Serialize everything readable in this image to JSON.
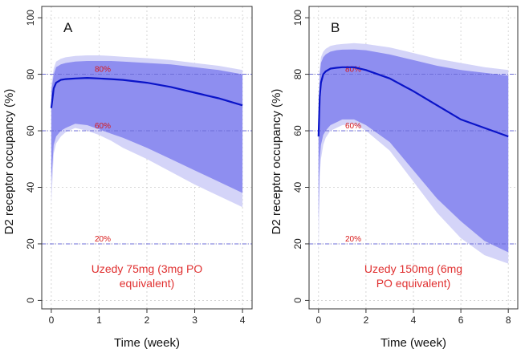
{
  "colors": {
    "median_line": "#0a14c8",
    "inner_band": "#8e8ef0",
    "outer_band": "#d4d4f8",
    "reference_line": "#6e6ed8",
    "reference_label": "#d81818",
    "caption": "#e03030",
    "grid": "#cccccc",
    "axis": "#333333"
  },
  "chart_data": [
    {
      "type": "line",
      "panel_label": "A",
      "xlabel": "Time (week)",
      "ylabel": "D2 receptor occupancy (%)",
      "xlim": [
        -0.2,
        4.2
      ],
      "ylim": [
        -3,
        104
      ],
      "x_ticks": [
        0,
        1,
        2,
        3,
        4
      ],
      "y_ticks": [
        0,
        20,
        40,
        60,
        80,
        100
      ],
      "grid": true,
      "caption_lines": [
        "Uzedy 75mg (3mg PO",
        "equivalent)"
      ],
      "reference_lines": [
        {
          "y": 80,
          "label": "80%"
        },
        {
          "y": 60,
          "label": "60%"
        },
        {
          "y": 20,
          "label": "20%"
        }
      ],
      "x": [
        0,
        0.05,
        0.1,
        0.2,
        0.3,
        0.5,
        0.75,
        1,
        1.25,
        1.5,
        2,
        2.5,
        3,
        3.5,
        4
      ],
      "median": [
        68,
        75,
        77,
        78,
        78.3,
        78.5,
        78.7,
        78.5,
        78.3,
        78,
        77,
        75.5,
        73.5,
        71.5,
        69
      ],
      "inner_upper": [
        74,
        80,
        82.5,
        83.5,
        84,
        84.5,
        84.7,
        84.7,
        84.7,
        84.5,
        84,
        83.5,
        82.5,
        81.5,
        80
      ],
      "inner_lower": [
        42,
        55,
        58,
        60,
        61,
        62.5,
        62,
        60.5,
        59,
        57.5,
        54,
        50,
        46,
        42,
        38
      ],
      "outer_upper": [
        76,
        82,
        84.5,
        85.5,
        86,
        86.5,
        86.7,
        86.7,
        86.5,
        86.2,
        85.7,
        85,
        84,
        83,
        81.5
      ],
      "outer_lower": [
        34,
        52,
        55.5,
        58,
        59.5,
        61,
        60,
        58.5,
        56.5,
        54,
        50,
        45.5,
        41,
        37,
        33
      ]
    },
    {
      "type": "line",
      "panel_label": "B",
      "xlabel": "Time (week)",
      "ylabel": "D2 receptor occupancy (%)",
      "xlim": [
        -0.4,
        8.4
      ],
      "ylim": [
        -3,
        104
      ],
      "x_ticks": [
        0,
        2,
        4,
        6,
        8
      ],
      "y_ticks": [
        0,
        20,
        40,
        60,
        80,
        100
      ],
      "grid": true,
      "caption_lines": [
        "Uzedy 150mg (6mg",
        "PO equivalent)"
      ],
      "reference_lines": [
        {
          "y": 80,
          "label": "80%"
        },
        {
          "y": 60,
          "label": "60%"
        },
        {
          "y": 20,
          "label": "20%"
        }
      ],
      "x": [
        0,
        0.05,
        0.1,
        0.2,
        0.3,
        0.5,
        0.75,
        1,
        1.5,
        2,
        3,
        4,
        5,
        6,
        7,
        8
      ],
      "median": [
        58,
        72,
        77,
        80,
        81,
        82,
        82.3,
        82.5,
        82.5,
        81.5,
        78.5,
        74,
        69,
        64,
        61,
        58
      ],
      "inner_upper": [
        64,
        80,
        84,
        86,
        87,
        88,
        88.5,
        88.7,
        88.8,
        88.5,
        87,
        85,
        83,
        81.5,
        80.5,
        79.5
      ],
      "inner_lower": [
        28,
        50,
        55,
        58.5,
        60,
        62,
        63,
        64,
        64,
        62,
        56,
        46,
        36,
        28,
        21,
        17
      ],
      "outer_upper": [
        66,
        82,
        86,
        88,
        89,
        90,
        90.5,
        90.7,
        91,
        90.7,
        89.5,
        87.5,
        85.5,
        84,
        82.5,
        81.5
      ],
      "outer_lower": [
        15,
        44,
        50,
        55,
        57.5,
        60,
        61,
        62,
        62.5,
        60,
        53,
        42,
        31,
        22,
        16,
        13
      ]
    }
  ]
}
